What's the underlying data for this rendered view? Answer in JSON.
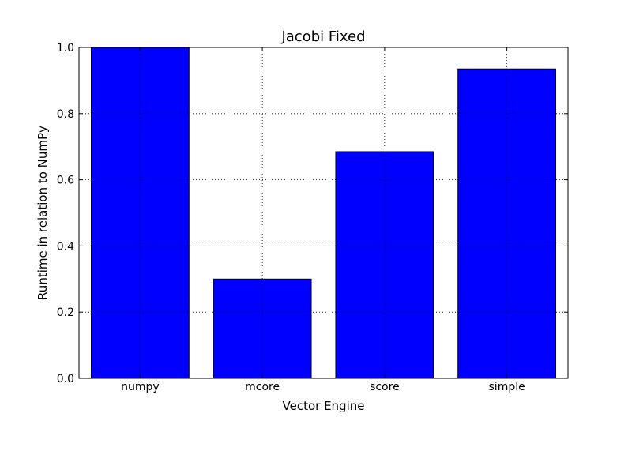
{
  "chart_data": {
    "type": "bar",
    "title": "Jacobi Fixed",
    "xlabel": "Vector Engine",
    "ylabel": "Runtime in relation to NumPy",
    "categories": [
      "numpy",
      "mcore",
      "score",
      "simple"
    ],
    "values": [
      1.0,
      0.3,
      0.685,
      0.935
    ],
    "ylim": [
      0,
      1.0
    ],
    "yticks": [
      0.0,
      0.2,
      0.4,
      0.6,
      0.8,
      1.0
    ],
    "ytick_labels": [
      "0.0",
      "0.2",
      "0.4",
      "0.6",
      "0.8",
      "1.0"
    ],
    "grid": true,
    "legend": "none",
    "bar_color": "#0000ff",
    "edge_color": "#000000"
  }
}
